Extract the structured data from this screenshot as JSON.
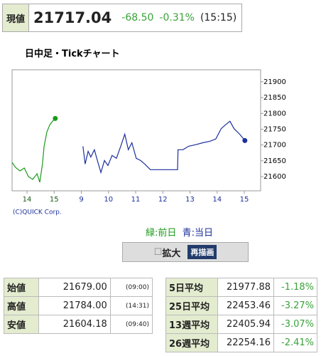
{
  "header": {
    "label": "現値",
    "price": "21717.04",
    "change": "-68.50",
    "change_pct": "-0.31%",
    "time": "(15:15)"
  },
  "chart_data": {
    "type": "line",
    "title": "日中足・Tickチャート",
    "xlim": [
      -0.55,
      8.6
    ],
    "xticks": [
      {
        "value": 0,
        "label": "14"
      },
      {
        "value": 1,
        "label": "15"
      },
      {
        "value": 2,
        "label": "9"
      },
      {
        "value": 3,
        "label": "10"
      },
      {
        "value": 4,
        "label": "11"
      },
      {
        "value": 5,
        "label": "12"
      },
      {
        "value": 6,
        "label": "13"
      },
      {
        "value": 7,
        "label": "14"
      },
      {
        "value": 8,
        "label": "15"
      }
    ],
    "ylim": [
      21555,
      21938
    ],
    "yticks": [
      21600,
      21650,
      21700,
      21750,
      21800,
      21850,
      21900
    ],
    "grid": false,
    "series": [
      {
        "name": "緑:前日",
        "color": "#1a9a1a",
        "x": [
          -0.55,
          -0.42,
          -0.26,
          -0.1,
          0.05,
          0.21,
          0.37,
          0.47,
          0.57,
          0.63,
          0.73,
          0.84,
          0.94,
          1.04
        ],
        "values": [
          21645,
          21629,
          21618,
          21627,
          21600,
          21591,
          21609,
          21582,
          21640,
          21696,
          21741,
          21764,
          21775,
          21784
        ]
      },
      {
        "name": "青:当日",
        "color": "#1c2f9c",
        "x": [
          2.06,
          2.14,
          2.25,
          2.35,
          2.48,
          2.61,
          2.72,
          2.85,
          2.98,
          3.13,
          3.29,
          3.45,
          3.6,
          3.73,
          3.86,
          4.02,
          4.18,
          4.33,
          4.54,
          5.54,
          5.56,
          5.74,
          5.95,
          6.21,
          6.47,
          6.74,
          6.95,
          7.15,
          7.31,
          7.47,
          7.62,
          7.83,
          8.02
        ],
        "values": [
          21696,
          21640,
          21680,
          21662,
          21685,
          21645,
          21613,
          21651,
          21635,
          21667,
          21658,
          21696,
          21734,
          21685,
          21707,
          21658,
          21651,
          21640,
          21622,
          21622,
          21685,
          21685,
          21696,
          21701,
          21707,
          21712,
          21719,
          21752,
          21764,
          21775,
          21752,
          21734,
          21714
        ]
      }
    ],
    "copyright": "(C)QUICK Corp."
  },
  "controls": {
    "checkbox": "拡大",
    "button": "再描画"
  },
  "price_table": {
    "rows": [
      [
        "始値",
        "21679.00",
        "(09:00)"
      ],
      [
        "高値",
        "21784.00",
        "(14:31)"
      ],
      [
        "安値",
        "21604.18",
        "(09:40)"
      ]
    ]
  },
  "average_table": {
    "rows": [
      [
        "5日平均",
        "21977.88",
        "-1.18%"
      ],
      [
        "25日平均",
        "22453.46",
        "-3.27%"
      ],
      [
        "13週平均",
        "22405.94",
        "-3.07%"
      ],
      [
        "26週平均",
        "22254.16",
        "-2.41%"
      ]
    ]
  }
}
